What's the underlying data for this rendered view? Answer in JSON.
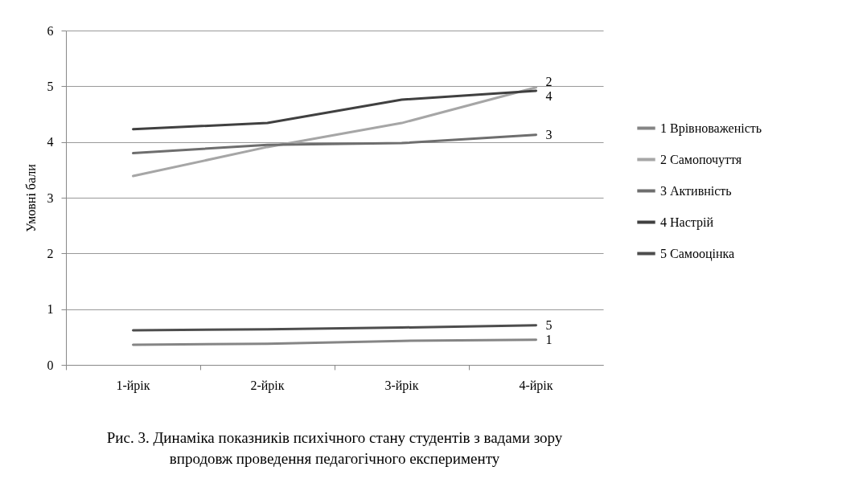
{
  "chart_data": {
    "type": "line",
    "ylabel": "Умовні  бали",
    "categories": [
      "1-йрік",
      "2-йрік",
      "3-йрік",
      "4-йрік"
    ],
    "series": [
      {
        "name": "1 Врівноваженість",
        "color": "#858585",
        "values": [
          0.36,
          0.38,
          0.43,
          0.45
        ]
      },
      {
        "name": "2 Самопочуття",
        "color": "#a6a6a6",
        "values": [
          3.39,
          3.91,
          4.34,
          4.98
        ]
      },
      {
        "name": "3 Активність",
        "color": "#6e6e6e",
        "values": [
          3.8,
          3.95,
          3.98,
          4.13
        ]
      },
      {
        "name": "4 Настрій",
        "color": "#404040",
        "values": [
          4.23,
          4.34,
          4.76,
          4.92
        ]
      },
      {
        "name": "5 Самооцінка",
        "color": "#4d4d4d",
        "values": [
          0.62,
          0.64,
          0.67,
          0.71
        ]
      }
    ],
    "ylim": [
      0,
      6
    ],
    "yticks": [
      0,
      1,
      2,
      3,
      4,
      5,
      6
    ],
    "grid": "y",
    "legend": "right",
    "marker": "none",
    "line_style": "solid",
    "annotations": [
      {
        "text": "2",
        "x": "4-йрік",
        "y": 4.98
      },
      {
        "text": "4",
        "x": "4-йрік",
        "y": 4.92
      },
      {
        "text": "3",
        "x": "4-йрік",
        "y": 4.13
      },
      {
        "text": "5",
        "x": "4-йрік",
        "y": 0.71
      },
      {
        "text": "1",
        "x": "4-йрік",
        "y": 0.45
      },
      "Рис. 3. Динаміка показників психічного стану студентів з вадами зору\nвпродовж проведення педагогічного експерименту"
    ]
  }
}
